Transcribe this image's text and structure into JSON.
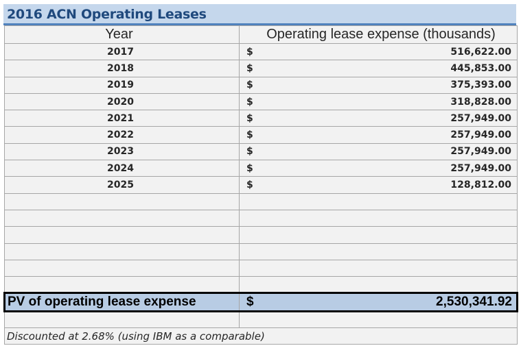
{
  "title": "2016 ACN Operating Leases",
  "headers": {
    "year": "Year",
    "expense": "Operating lease expense (thousands)"
  },
  "rows": [
    {
      "year": "2017",
      "currency": "$",
      "value": "516,622.00"
    },
    {
      "year": "2018",
      "currency": "$",
      "value": "445,853.00"
    },
    {
      "year": "2019",
      "currency": "$",
      "value": "375,393.00"
    },
    {
      "year": "2020",
      "currency": "$",
      "value": "318,828.00"
    },
    {
      "year": "2021",
      "currency": "$",
      "value": "257,949.00"
    },
    {
      "year": "2022",
      "currency": "$",
      "value": "257,949.00"
    },
    {
      "year": "2023",
      "currency": "$",
      "value": "257,949.00"
    },
    {
      "year": "2024",
      "currency": "$",
      "value": "257,949.00"
    },
    {
      "year": "2025",
      "currency": "$",
      "value": "128,812.00"
    }
  ],
  "pv": {
    "label": "PV of operating lease expense",
    "currency": "$",
    "value": "2,530,341.92"
  },
  "note": "Discounted at 2.68% (using IBM as a comparable)",
  "colors": {
    "title_bg": "#c5d7ec",
    "title_text": "#1f497d",
    "accent": "#4f81bd",
    "pv_bg": "#b8cce4"
  }
}
